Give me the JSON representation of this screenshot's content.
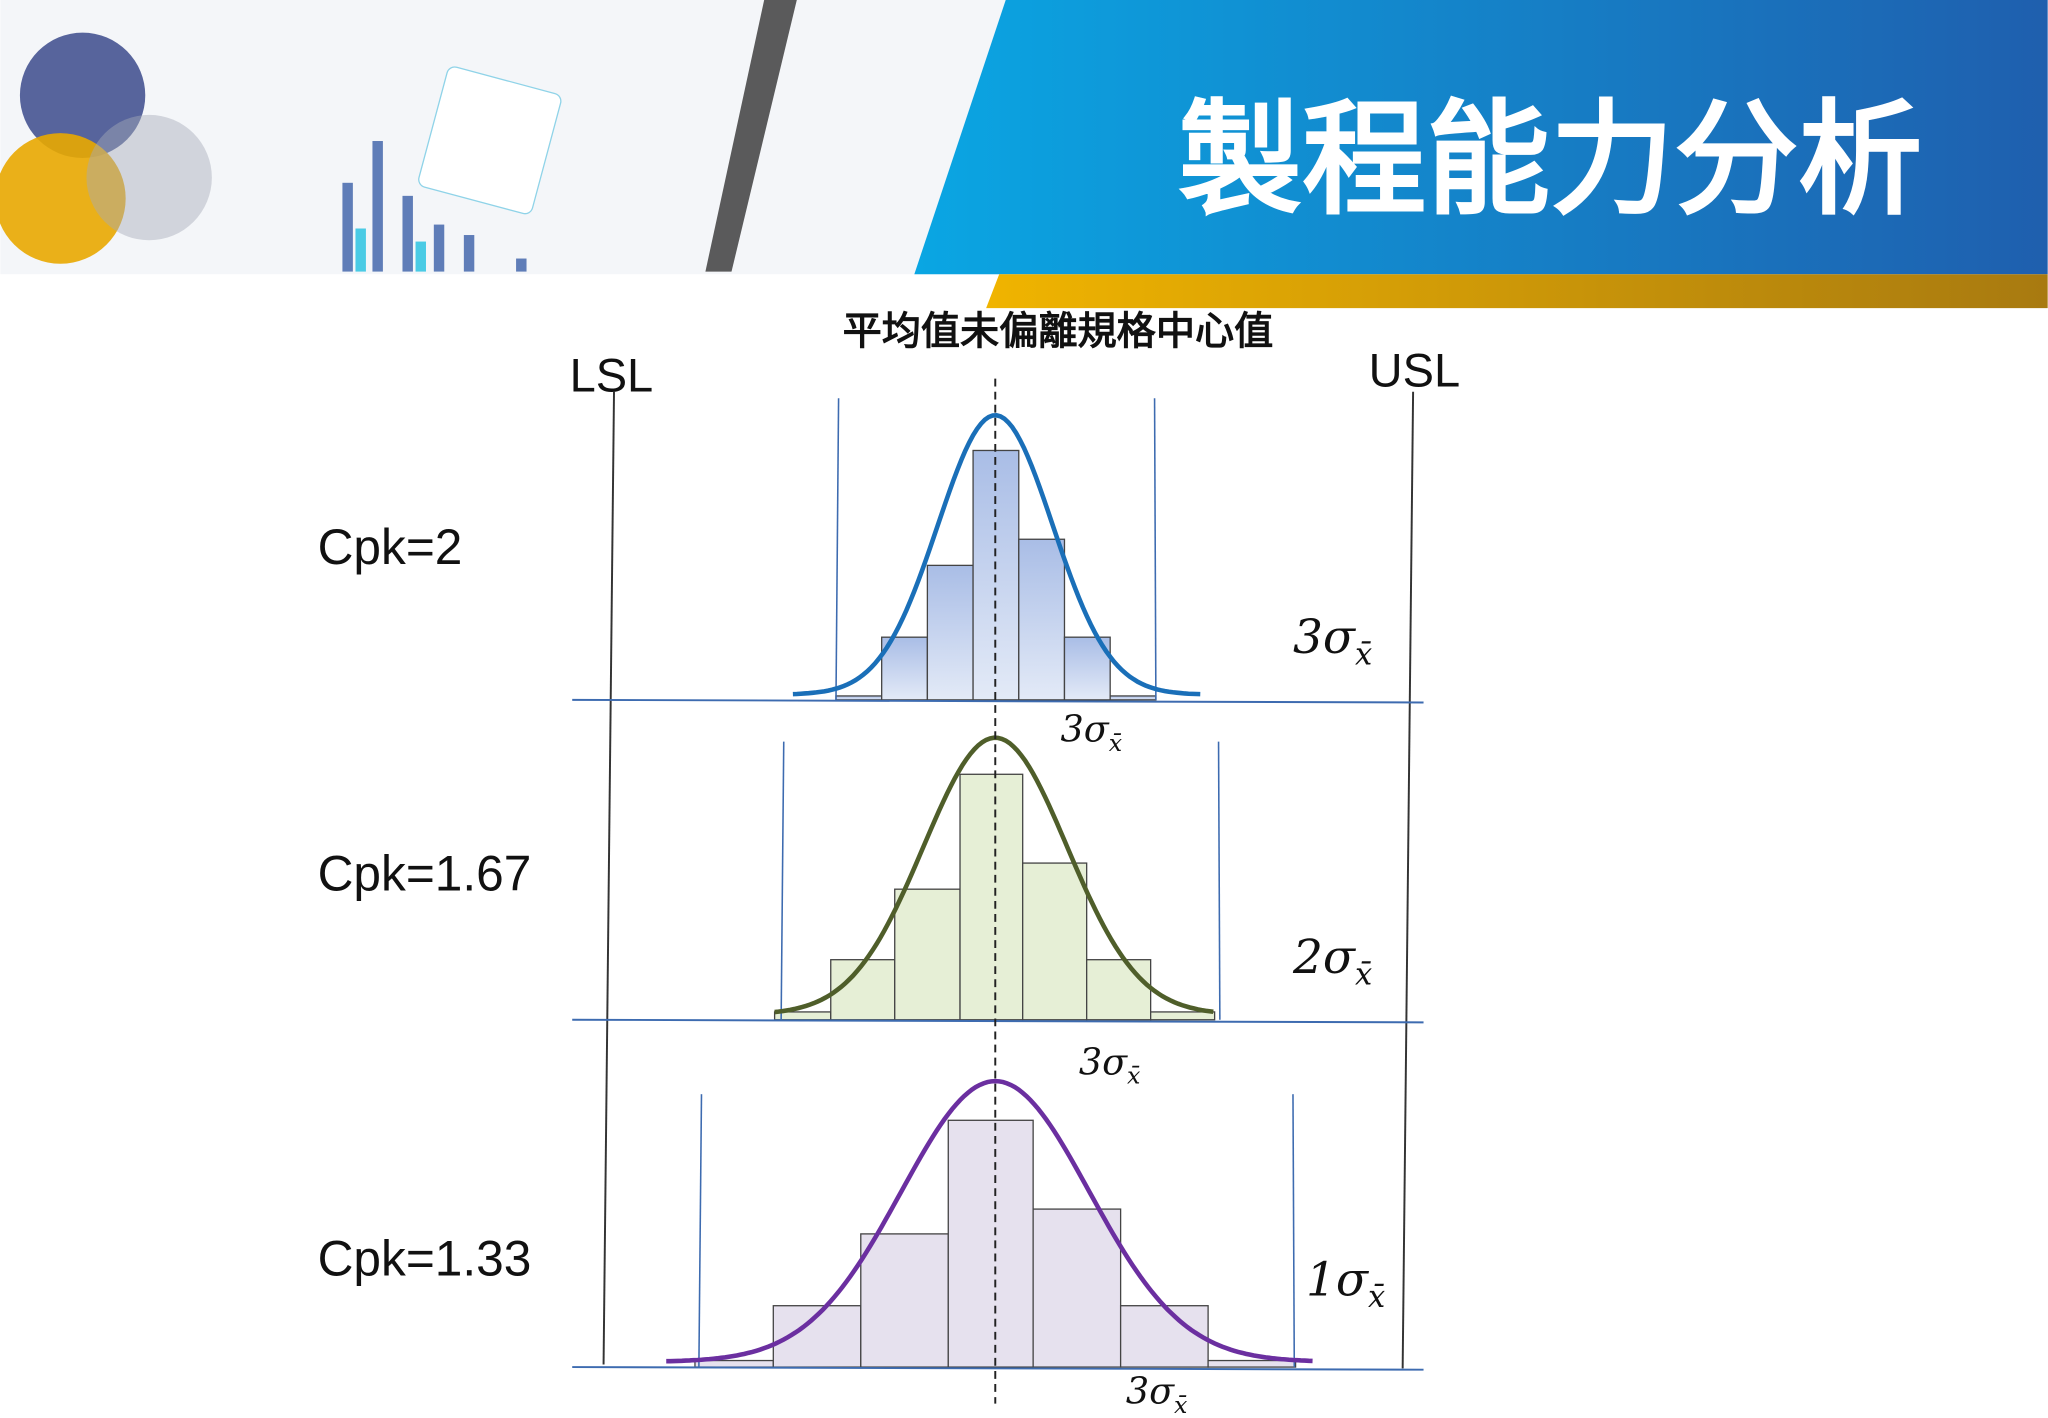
{
  "header": {
    "title": "製程能力分析"
  },
  "diagram": {
    "subtitle": "平均值未偏離規格中心值",
    "lsl": "LSL",
    "usl": "USL",
    "rows": [
      {
        "cpk": "Cpk=2",
        "side_label": {
          "text": "3σ",
          "sub": "x̄"
        },
        "bottom_label": {
          "text": "3σ",
          "sub": "x̄"
        }
      },
      {
        "cpk": "Cpk=1.67",
        "side_label": {
          "text": "2σ",
          "sub": "x̄"
        },
        "bottom_label": {
          "text": "3σ",
          "sub": "x̄"
        }
      },
      {
        "cpk": "Cpk=1.33",
        "side_label": {
          "text": "1σ",
          "sub": "x̄"
        },
        "bottom_label": {
          "text": "3σ",
          "sub": "x̄"
        }
      }
    ]
  }
}
